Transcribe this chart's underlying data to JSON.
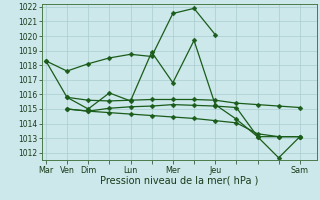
{
  "bg_color": "#cce8ea",
  "grid_color": "#aacdd0",
  "line_color": "#1a5c1a",
  "xlabel": "Pression niveau de la mer( hPa )",
  "ylim": [
    1011.5,
    1022.2
  ],
  "yticks": [
    1012,
    1013,
    1014,
    1015,
    1016,
    1017,
    1018,
    1019,
    1020,
    1021,
    1022
  ],
  "xtick_labels": [
    "Mar",
    "Ven",
    "Dim",
    "",
    "Lun",
    "",
    "Mer",
    "",
    "Jeu",
    "",
    "",
    "",
    "Sam"
  ],
  "xtick_positions": [
    0,
    1,
    2,
    3,
    4,
    5,
    6,
    7,
    8,
    9,
    10,
    11,
    12
  ],
  "xlim": [
    -0.2,
    12.8
  ],
  "line1": {
    "x": [
      0,
      1,
      2,
      3,
      4,
      5,
      6,
      7,
      8
    ],
    "y": [
      1018.3,
      1017.6,
      1018.1,
      1018.5,
      1018.75,
      1018.6,
      1021.55,
      1021.9,
      1020.1
    ]
  },
  "line2": {
    "x": [
      0,
      1,
      2,
      3,
      4,
      5,
      6,
      7,
      8,
      9,
      10,
      11,
      12
    ],
    "y": [
      1018.3,
      1015.8,
      1015.0,
      1016.1,
      1015.55,
      1018.9,
      1016.8,
      1019.7,
      1015.3,
      1014.3,
      1013.1,
      1013.1,
      1013.1
    ]
  },
  "line3": {
    "x": [
      1,
      2,
      3,
      4,
      5,
      6,
      7,
      8,
      9,
      10,
      11,
      12
    ],
    "y": [
      1015.8,
      1015.6,
      1015.55,
      1015.6,
      1015.65,
      1015.65,
      1015.65,
      1015.6,
      1015.4,
      1015.3,
      1015.2,
      1015.1
    ]
  },
  "line4": {
    "x": [
      1,
      2,
      3,
      4,
      5,
      6,
      7,
      8,
      9,
      10,
      11,
      12
    ],
    "y": [
      1015.0,
      1014.85,
      1015.05,
      1015.15,
      1015.2,
      1015.3,
      1015.25,
      1015.2,
      1015.1,
      1013.1,
      1011.65,
      1013.1
    ]
  },
  "line5": {
    "x": [
      1,
      2,
      3,
      4,
      5,
      6,
      7,
      8,
      9,
      10,
      11,
      12
    ],
    "y": [
      1015.0,
      1014.85,
      1014.75,
      1014.65,
      1014.55,
      1014.45,
      1014.35,
      1014.2,
      1014.05,
      1013.3,
      1013.1,
      1013.1
    ]
  },
  "marker_size": 2.5,
  "line_width": 0.9,
  "ytick_fontsize": 5.5,
  "xtick_fontsize": 5.8,
  "xlabel_fontsize": 7.0
}
